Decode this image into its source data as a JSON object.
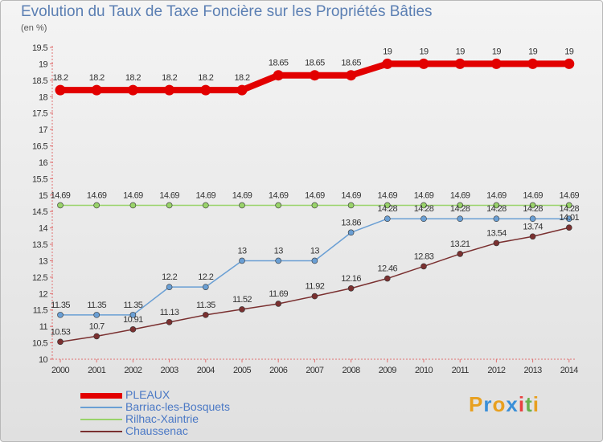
{
  "header": {
    "title": "Evolution du Taux de Taxe Foncière sur les Propriétés Bâties",
    "unit": "(en %)"
  },
  "logo": {
    "letters": [
      "P",
      "r",
      "o",
      "x",
      "i",
      "t",
      "i"
    ],
    "colors": [
      "#e8a020",
      "#3a8fd8",
      "#e8a020",
      "#3a8fd8",
      "#e84040",
      "#6ab04c",
      "#e8a020"
    ]
  },
  "chart_data": {
    "type": "line",
    "title": "Evolution du Taux de Taxe Foncière sur les Propriétés Bâties",
    "ylabel": "(en %)",
    "xlabel": "",
    "ylim": [
      10,
      19.5
    ],
    "ytick_step": 0.5,
    "x": [
      "2000",
      "2001",
      "2002",
      "2003",
      "2004",
      "2005",
      "2006",
      "2007",
      "2008",
      "2009",
      "2010",
      "2011",
      "2012",
      "2013",
      "2014"
    ],
    "grid": false,
    "legend_position": "bottom-left",
    "series": [
      {
        "name": "PLEAUX",
        "color": "#e20000",
        "values": [
          18.2,
          18.2,
          18.2,
          18.2,
          18.2,
          18.2,
          18.65,
          18.65,
          18.65,
          19,
          19,
          19,
          19,
          19,
          19
        ],
        "labels": [
          "18.2",
          "18.2",
          "18.2",
          "18.2",
          "18.2",
          "18.2",
          "18.65",
          "18.65",
          "18.65",
          "19",
          "19",
          "19",
          "19",
          "19",
          "19"
        ]
      },
      {
        "name": "Barriac-les-Bosquets",
        "color": "#6a9fd4",
        "values": [
          11.35,
          11.35,
          11.35,
          12.2,
          12.2,
          13,
          13,
          13,
          13.86,
          14.28,
          14.28,
          14.28,
          14.28,
          14.28,
          14.28
        ],
        "labels": [
          "11.35",
          "11.35",
          "11.35",
          "12.2",
          "12.2",
          "13",
          "13",
          "13",
          "13.86",
          "14.28",
          "14.28",
          "14.28",
          "14.28",
          "14.28",
          "14.28"
        ]
      },
      {
        "name": "Rilhac-Xaintrie",
        "color": "#99d36a",
        "values": [
          14.69,
          14.69,
          14.69,
          14.69,
          14.69,
          14.69,
          14.69,
          14.69,
          14.69,
          14.69,
          14.69,
          14.69,
          14.69,
          14.69,
          14.69
        ],
        "labels": [
          "14.69",
          "14.69",
          "14.69",
          "14.69",
          "14.69",
          "14.69",
          "14.69",
          "14.69",
          "14.69",
          "14.69",
          "14.69",
          "14.69",
          "14.69",
          "14.69",
          "14.69"
        ]
      },
      {
        "name": "Chaussenac",
        "color": "#7a3030",
        "values": [
          10.53,
          10.7,
          10.91,
          11.13,
          11.35,
          11.52,
          11.69,
          11.92,
          12.16,
          12.46,
          12.83,
          13.21,
          13.54,
          13.74,
          14.01
        ],
        "labels": [
          "10.53",
          "10.7",
          "10.91",
          "11.13",
          "11.35",
          "11.52",
          "11.69",
          "11.92",
          "12.16",
          "12.46",
          "12.83",
          "13.21",
          "13.54",
          "13.74",
          "14.01"
        ]
      }
    ]
  }
}
